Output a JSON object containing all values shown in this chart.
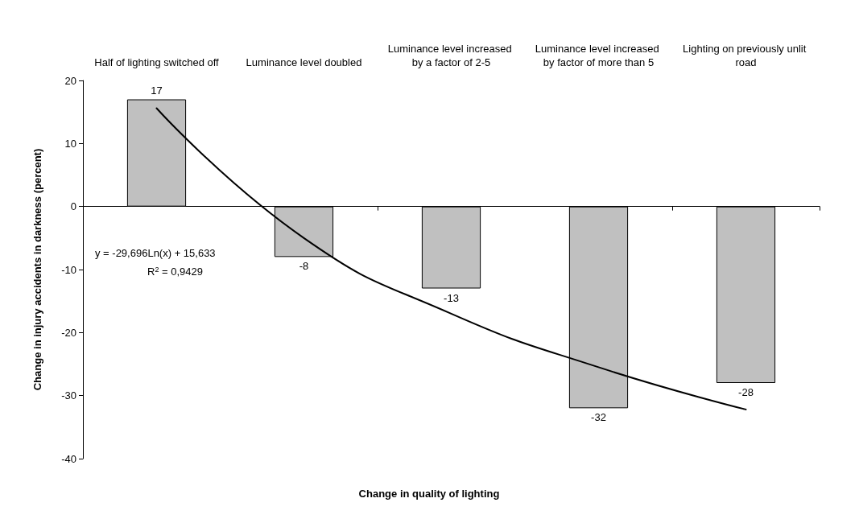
{
  "chart_data": {
    "type": "bar",
    "xlabel": "Change in quality of lighting",
    "ylabel": "Change in injury accidents in darkness (percent)",
    "categories": [
      "Half of lighting switched off",
      "Luminance level doubled",
      "Luminance level increased by a factor of 2-5",
      "Luminance level increased by factor of more than 5",
      "Lighting on previously unlit road"
    ],
    "series": [
      {
        "color": "#c0c0c0",
        "values": [
          17,
          -8,
          -13,
          -32,
          -28
        ],
        "value_labels": [
          "17",
          "-8",
          "-13",
          "-32",
          "-28"
        ]
      },
      {
        "type": "line",
        "color": "#000000",
        "values": [
          15.6,
          -5,
          -17,
          -25.5,
          -32.2
        ]
      }
    ],
    "ylim": [
      -40,
      20
    ],
    "yticks": [
      -40,
      -30,
      -20,
      -10,
      0,
      10,
      20
    ],
    "marker": "none",
    "line_style": "solid",
    "annotations": [
      "y = -29,696Ln(x) + 15,633",
      "R$^{2}$ = 0,9429"
    ]
  }
}
